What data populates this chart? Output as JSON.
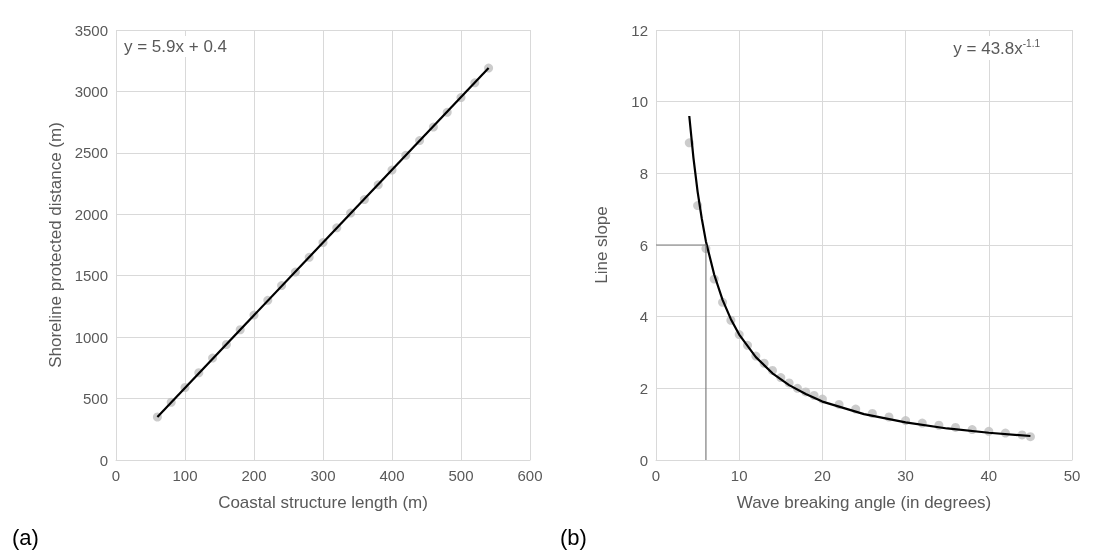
{
  "chart_data": [
    {
      "type": "scatter",
      "xlabel": "Coastal structure length (m)",
      "ylabel": "Shoreline protected distance (m)",
      "xlim": [
        0,
        600
      ],
      "xticks": [
        0,
        100,
        200,
        300,
        400,
        500,
        600
      ],
      "ylim": [
        0,
        3500
      ],
      "yticks": [
        0,
        500,
        1000,
        1500,
        2000,
        2500,
        3000,
        3500
      ],
      "grid": true,
      "marker": "circle",
      "annotations": [
        "y = 5.9x + 0.4",
        "(a)"
      ],
      "series": [
        {
          "color": "#bfbfbf",
          "x": [
            60,
            80,
            100,
            120,
            140,
            160,
            180,
            200,
            220,
            240,
            260,
            280,
            300,
            320,
            340,
            360,
            380,
            400,
            420,
            440,
            460,
            480,
            500,
            520,
            540
          ],
          "values": [
            350,
            470,
            590,
            710,
            830,
            940,
            1060,
            1180,
            1300,
            1420,
            1530,
            1650,
            1770,
            1890,
            2010,
            2120,
            2240,
            2360,
            2480,
            2600,
            2710,
            2830,
            2950,
            3070,
            3190
          ]
        },
        {
          "type": "line",
          "color": "#000000",
          "marker": "none",
          "x": [
            60,
            540
          ],
          "values": [
            350,
            3190
          ]
        }
      ]
    },
    {
      "type": "scatter",
      "xlabel": "Wave breaking angle (in degrees)",
      "ylabel": "Line slope",
      "xlim": [
        0,
        50
      ],
      "xticks": [
        0,
        10,
        20,
        30,
        40,
        50
      ],
      "ylim": [
        0,
        12
      ],
      "yticks": [
        0,
        2,
        4,
        6,
        8,
        10,
        12
      ],
      "grid": true,
      "marker": "circle",
      "annotations": [
        "y = 43.8x$^{-1.1}$",
        "(b)"
      ],
      "series": [
        {
          "color": "#bfbfbf",
          "x": [
            4,
            5,
            6,
            7,
            8,
            9,
            10,
            11,
            12,
            13,
            14,
            15,
            16,
            17,
            18,
            19,
            20,
            22,
            24,
            26,
            28,
            30,
            32,
            34,
            36,
            38,
            40,
            42,
            44,
            45
          ],
          "values": [
            8.85,
            7.1,
            5.9,
            5.05,
            4.4,
            3.9,
            3.5,
            3.2,
            2.9,
            2.7,
            2.5,
            2.3,
            2.15,
            2.0,
            1.9,
            1.8,
            1.7,
            1.55,
            1.42,
            1.3,
            1.2,
            1.1,
            1.03,
            0.97,
            0.91,
            0.85,
            0.8,
            0.75,
            0.7,
            0.65
          ]
        },
        {
          "type": "line",
          "color": "#000000",
          "marker": "none",
          "x": [
            4,
            4.5,
            5,
            5.5,
            6,
            7,
            8,
            9,
            10,
            12,
            14,
            16,
            18,
            20,
            25,
            30,
            35,
            40,
            45
          ],
          "values": [
            9.6,
            8.43,
            7.49,
            6.74,
            6.1,
            5.17,
            4.47,
            3.93,
            3.5,
            2.87,
            2.42,
            2.09,
            1.84,
            1.63,
            1.28,
            1.05,
            0.88,
            0.76,
            0.67
          ]
        },
        {
          "type": "line",
          "color": "#7f7f7f",
          "marker": "none",
          "x": [
            0,
            6,
            6
          ],
          "values": [
            6,
            6,
            0
          ]
        }
      ]
    }
  ]
}
